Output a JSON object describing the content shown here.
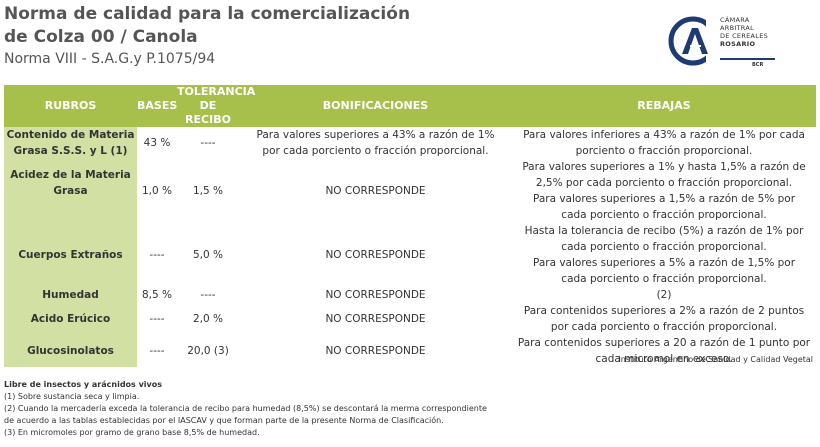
{
  "header": {
    "title_line1": "Norma de calidad para la comercialización",
    "title_line2": "de Colza 00 / Canola",
    "subtitle": "Norma VIII - S.A.G.y P.1075/94"
  },
  "logo": {
    "line1": "CÁMARA",
    "line2": "ARBITRAL",
    "line3": "DE CEREALES",
    "line4": "ROSARIO",
    "short": "BCR",
    "color": "#1f3b73"
  },
  "table": {
    "headers": {
      "rubros": "RUBROS",
      "bases": "BASES",
      "tolerancia_1": "TOLERANCIA",
      "tolerancia_2": "DE RECIBO",
      "bonificaciones": "BONIFICACIONES",
      "rebajas": "REBAJAS"
    },
    "rows": [
      {
        "rubro_1": "Contenido de Materia",
        "rubro_2": "Grasa S.S.S. y L (1)",
        "base": "43 %",
        "tolerancia": "----",
        "bonif_1": "Para valores superiores a 43% a razón de 1%",
        "bonif_2": "por cada porciento o fracción proporcional.",
        "rebajas": [
          "Para valores inferiores a 43% a razón de 1% por cada",
          "porciento o fracción proporcional."
        ]
      },
      {
        "rubro_1": "Acidez de la Materia",
        "rubro_2": "Grasa",
        "base": "1,0 %",
        "tolerancia": "1,5 %",
        "bonif": "NO CORRESPONDE",
        "rebajas": [
          "Para valores superiores a 1% y hasta 1,5% a razón de",
          "2,5% por cada porciento o fracción proporcional.",
          "Para valores superiores a 1,5% a razón de 5% por",
          "cada porciento o fracción proporcional."
        ]
      },
      {
        "rubro_1": "Cuerpos Extraños",
        "base": "----",
        "tolerancia": "5,0 %",
        "bonif": "NO CORRESPONDE",
        "rebajas": [
          "Hasta la tolerancia de recibo (5%) a razón de 1% por",
          "cada porciento o fracción proporcional.",
          "Para valores superiores a 5% a razón de 1,5% por",
          "cada porciento o fracción proporcional."
        ]
      },
      {
        "rubro_1": "Humedad",
        "base": "8,5 %",
        "tolerancia": "----",
        "bonif": "NO CORRESPONDE",
        "rebajas": [
          "(2)"
        ]
      },
      {
        "rubro_1": "Acido Erúcico",
        "base": "----",
        "tolerancia": "2,0 %",
        "bonif": "NO CORRESPONDE",
        "rebajas": [
          "Para contenidos superiores a 2% a razón de 2 puntos",
          "por cada porciento o fracción proporcional."
        ]
      },
      {
        "rubro_1": "Glucosinolatos",
        "base": "----",
        "tolerancia": "20,0 (3)",
        "bonif": "NO CORRESPONDE",
        "rebajas": [
          "Para contenidos superiores a 20 a razón de 1 punto por",
          "cada micromol en exceso."
        ]
      }
    ],
    "colors": {
      "header_bg": "#a7c04b",
      "rubro_bg": "#d3e0a4"
    }
  },
  "institute": "Instituto Argentino de Sanidad y Calidad Vegetal",
  "notes": {
    "head": "Libre de insectos y arácnidos vivos",
    "n1": "(1) Sobre sustancia seca y limpia.",
    "n2a": "(2) Cuando la mercadería exceda la tolerancia de recibo para humedad (8,5%) se descontará la merma correspondiente",
    "n2b": "de acuerdo a las tablas establecidas por el IASCAV y que forman parte de la presente Norma de Clasificación.",
    "n3": "(3) En micromoles por gramo de grano base 8,5% de humedad."
  }
}
